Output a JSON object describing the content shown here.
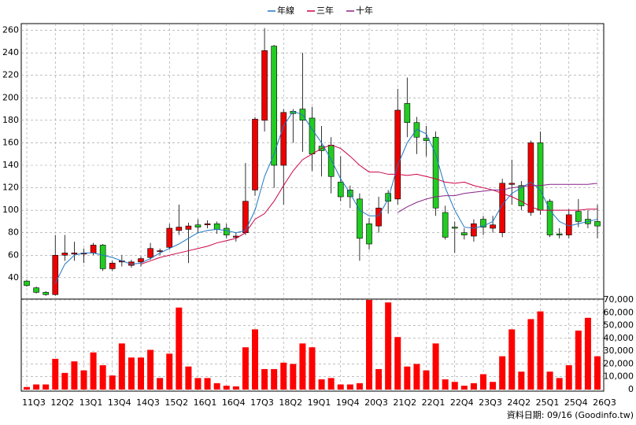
{
  "chart_data": {
    "type": "candlestick",
    "categories": [
      "11Q3",
      null,
      null,
      "12Q2",
      null,
      null,
      "13Q1",
      null,
      null,
      "13Q4",
      null,
      null,
      "14Q3",
      null,
      null,
      "15Q2",
      null,
      null,
      "16Q1",
      null,
      null,
      "16Q4",
      null,
      null,
      "17Q3",
      null,
      null,
      "18Q2",
      null,
      null,
      "19Q1",
      null,
      null,
      "19Q4",
      null,
      null,
      "20Q3",
      null,
      null,
      "21Q2",
      null,
      null,
      "22Q1",
      null,
      null,
      "22Q4",
      null,
      null,
      "23Q3",
      null,
      null,
      "24Q2",
      null,
      null,
      "25Q1",
      null,
      null,
      "25Q4",
      null,
      null,
      "26Q3"
    ],
    "open": [
      37,
      31,
      27,
      25,
      60,
      61,
      61,
      62,
      69,
      48,
      54,
      51,
      54,
      58,
      64,
      67,
      82,
      83,
      87,
      87,
      88,
      84,
      76,
      80,
      118,
      180,
      246,
      140,
      188,
      190,
      182,
      157,
      158,
      125,
      118,
      110,
      88,
      86,
      115,
      110,
      195,
      178,
      164,
      165,
      98,
      85,
      80,
      77,
      92,
      84,
      80,
      123,
      122,
      98,
      160,
      108,
      79,
      78,
      99,
      92,
      90
    ],
    "high": [
      38,
      32,
      28,
      78,
      78,
      72,
      66,
      71,
      70,
      55,
      60,
      56,
      59,
      71,
      66,
      88,
      105,
      89,
      92,
      91,
      90,
      88,
      80,
      142,
      183,
      262,
      247,
      190,
      190,
      240,
      192,
      175,
      165,
      148,
      122,
      115,
      93,
      112,
      118,
      208,
      218,
      183,
      175,
      170,
      104,
      90,
      84,
      92,
      95,
      95,
      128,
      145,
      126,
      162,
      170,
      110,
      84,
      101,
      110,
      100,
      105
    ],
    "low": [
      32,
      26,
      24,
      24,
      55,
      55,
      53,
      60,
      46,
      46,
      50,
      49,
      50,
      56,
      60,
      65,
      78,
      53,
      80,
      84,
      79,
      75,
      72,
      78,
      113,
      170,
      120,
      105,
      160,
      152,
      135,
      130,
      115,
      108,
      102,
      55,
      65,
      80,
      97,
      105,
      165,
      150,
      148,
      95,
      74,
      62,
      74,
      72,
      78,
      80,
      76,
      105,
      100,
      95,
      96,
      76,
      75,
      75,
      85,
      84,
      75
    ],
    "close": [
      33,
      27,
      25,
      60,
      62,
      62,
      62,
      69,
      48,
      53,
      55,
      54,
      57,
      66,
      64,
      84,
      85,
      86,
      85,
      88,
      83,
      78,
      77,
      108,
      181,
      242,
      140,
      187,
      186,
      180,
      150,
      153,
      130,
      112,
      112,
      75,
      70,
      102,
      108,
      189,
      178,
      165,
      162,
      102,
      76,
      84,
      78,
      88,
      85,
      87,
      124,
      124,
      104,
      160,
      100,
      78,
      78,
      96,
      90,
      88,
      86
    ],
    "up_color": "#ee0000",
    "down_color": "#22cc22",
    "series": [
      {
        "name": "年線",
        "color": "#1f77c4",
        "values": [
          null,
          null,
          null,
          35,
          52,
          60,
          62,
          62,
          60,
          58,
          55,
          52,
          53,
          57,
          62,
          66,
          70,
          75,
          80,
          82,
          83,
          82,
          80,
          82,
          100,
          130,
          150,
          175,
          188,
          185,
          172,
          160,
          145,
          128,
          115,
          100,
          95,
          95,
          110,
          140,
          160,
          172,
          168,
          150,
          120,
          100,
          85,
          84,
          86,
          90,
          105,
          115,
          120,
          125,
          118,
          100,
          90,
          86,
          88,
          90,
          92
        ]
      },
      {
        "name": "三年",
        "color": "#cc0044",
        "values": [
          null,
          null,
          null,
          null,
          null,
          null,
          null,
          null,
          null,
          null,
          null,
          null,
          52,
          55,
          58,
          60,
          62,
          64,
          66,
          68,
          71,
          73,
          75,
          80,
          92,
          97,
          108,
          122,
          135,
          145,
          150,
          155,
          158,
          155,
          148,
          140,
          134,
          134,
          132,
          132,
          131,
          132,
          130,
          128,
          125,
          124,
          125,
          122,
          120,
          118,
          115,
          112,
          108,
          103,
          100,
          100,
          100,
          100,
          100,
          101,
          101
        ]
      },
      {
        "name": "十年",
        "color": "#882288",
        "values": [
          null,
          null,
          null,
          null,
          null,
          null,
          null,
          null,
          null,
          null,
          null,
          null,
          null,
          null,
          null,
          null,
          null,
          null,
          null,
          null,
          null,
          null,
          null,
          null,
          null,
          null,
          null,
          null,
          null,
          null,
          null,
          null,
          null,
          null,
          null,
          null,
          null,
          null,
          null,
          98,
          103,
          107,
          110,
          112,
          113,
          113,
          115,
          116,
          117,
          118,
          118,
          120,
          121,
          122,
          122,
          123,
          123,
          123,
          123,
          123,
          124
        ]
      }
    ],
    "volume": {
      "color": "#ff0000",
      "axis": "y2",
      "values": [
        2000,
        4000,
        4000,
        24000,
        13000,
        22000,
        15000,
        29000,
        19000,
        11000,
        36000,
        25000,
        25000,
        31000,
        9000,
        28000,
        64000,
        18000,
        9000,
        9000,
        5000,
        3000,
        2500,
        33000,
        47000,
        16000,
        16000,
        21000,
        20000,
        36000,
        33000,
        8000,
        9000,
        4000,
        4000,
        5000,
        70000,
        16000,
        68000,
        41000,
        18000,
        20000,
        15000,
        36000,
        8000,
        6000,
        3000,
        5000,
        12000,
        6000,
        26000,
        47000,
        14000,
        55000,
        61000,
        14000,
        9000,
        19000,
        46000,
        56000,
        26000
      ]
    },
    "ylim": [
      21,
      266
    ],
    "yticks": [
      40,
      60,
      80,
      100,
      120,
      140,
      160,
      180,
      200,
      220,
      240,
      260
    ],
    "y2lim": [
      0,
      70000
    ],
    "y2ticks": [
      0,
      {
        "value": 10000,
        "label": "10,000"
      },
      {
        "value": 20000,
        "label": "20,000"
      },
      {
        "value": 30000,
        "label": "30,000"
      },
      {
        "value": 40000,
        "label": "40,000"
      },
      {
        "value": 50000,
        "label": "50,000"
      },
      {
        "value": 60000,
        "label": "60,000"
      },
      {
        "value": 70000,
        "label": "70,000"
      }
    ],
    "grid": true,
    "legend": "top"
  },
  "footer": "資料日期: 09/16 (Goodinfo.tw)"
}
